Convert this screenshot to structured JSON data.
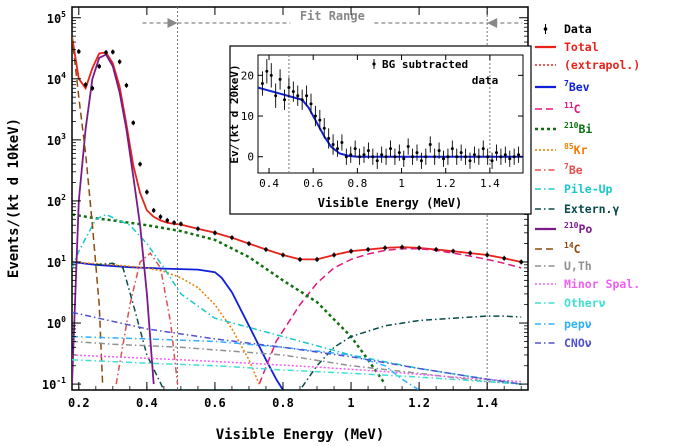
{
  "chart_data": [
    {
      "type": "line",
      "xlabel": "Visible Energy (MeV)",
      "ylabel": "Events/(kt d 10keV)",
      "xlim": [
        0.18,
        1.52
      ],
      "ylim": [
        0.08,
        150000
      ],
      "yscale": "log",
      "x_ticks": [
        0.2,
        0.4,
        0.6,
        0.8,
        1.0,
        1.2,
        1.4
      ],
      "x_tick_labels": [
        "0.2",
        "0.4",
        "0.6",
        "0.8",
        "1",
        "1.2",
        "1.4"
      ],
      "y_ticks": [
        0.1,
        1,
        10,
        100,
        1000,
        10000,
        100000
      ],
      "y_tick_labels": [
        [
          "10",
          "-1"
        ],
        [
          "10",
          "0"
        ],
        [
          "10",
          "1"
        ],
        [
          "10",
          "2"
        ],
        [
          "10",
          "3"
        ],
        [
          "10",
          "4"
        ],
        [
          "10",
          "5"
        ]
      ],
      "fit_range": {
        "label": "Fit Range",
        "x": [
          0.49,
          1.4
        ]
      },
      "legend_position": "outside-right",
      "series": [
        {
          "name": "Data",
          "color": "#000000",
          "style": "points",
          "x": [
            0.2,
            0.22,
            0.24,
            0.26,
            0.28,
            0.3,
            0.32,
            0.34,
            0.36,
            0.38,
            0.4,
            0.42,
            0.44,
            0.46,
            0.48,
            0.5,
            0.55,
            0.6,
            0.65,
            0.7,
            0.75,
            0.8,
            0.85,
            0.9,
            0.95,
            1.0,
            1.05,
            1.1,
            1.15,
            1.2,
            1.25,
            1.3,
            1.35,
            1.4,
            1.45,
            1.5
          ],
          "y": [
            28000,
            8000,
            7000,
            16000,
            27000,
            27500,
            19000,
            7800,
            1900,
            400,
            140,
            70,
            55,
            48,
            44,
            42,
            35,
            30,
            25,
            20,
            16,
            13,
            11,
            11,
            13,
            15,
            16,
            17,
            17.5,
            17,
            16,
            15,
            14,
            13,
            11.5,
            10
          ]
        },
        {
          "name": "Total",
          "color": "#e8231a",
          "style": "solid",
          "x": [
            0.18,
            0.2,
            0.22,
            0.24,
            0.26,
            0.28,
            0.3,
            0.32,
            0.34,
            0.36,
            0.38,
            0.4,
            0.42,
            0.44,
            0.46,
            0.48,
            0.5,
            0.55,
            0.6,
            0.65,
            0.7,
            0.75,
            0.8,
            0.85,
            0.9,
            0.95,
            1.0,
            1.05,
            1.1,
            1.15,
            1.2,
            1.25,
            1.3,
            1.35,
            1.4,
            1.45,
            1.5
          ],
          "y": [
            50000,
            10000,
            7000,
            15000,
            26000,
            27000,
            18000,
            7500,
            1800,
            380,
            135,
            70,
            55,
            48,
            44,
            42,
            41,
            35,
            30,
            25,
            20,
            16,
            13,
            11,
            11,
            13,
            15,
            16,
            17,
            17.5,
            17,
            16,
            15,
            14,
            13,
            11.5,
            10
          ]
        },
        {
          "name": "(extrapol.)",
          "color": "#e8231a",
          "style": "dotted",
          "x": [
            1.4,
            1.45,
            1.5
          ],
          "y": [
            13,
            11.5,
            10
          ]
        },
        {
          "name": "7Bev",
          "color": "#1020d8",
          "style": "solid",
          "x": [
            0.18,
            0.25,
            0.35,
            0.45,
            0.55,
            0.6,
            0.62,
            0.65,
            0.7,
            0.75,
            0.78,
            0.8
          ],
          "y": [
            10,
            9,
            8.2,
            7.8,
            7.5,
            6.8,
            5.5,
            3.2,
            0.9,
            0.25,
            0.12,
            0.08
          ]
        },
        {
          "name": "11C",
          "color": "#e0197c",
          "style": "dashed",
          "x": [
            0.73,
            0.78,
            0.85,
            0.9,
            0.95,
            1.0,
            1.05,
            1.1,
            1.15,
            1.2,
            1.25,
            1.3,
            1.35,
            1.4,
            1.45,
            1.5
          ],
          "y": [
            0.1,
            0.5,
            2,
            4.5,
            8,
            11,
            13.5,
            15.5,
            16.5,
            16.5,
            15.5,
            14,
            12.5,
            11,
            9.5,
            8
          ]
        },
        {
          "name": "210Bi",
          "color": "#107010",
          "style": "dotted-bold",
          "x": [
            0.18,
            0.25,
            0.3,
            0.4,
            0.5,
            0.6,
            0.7,
            0.8,
            0.9,
            1.0,
            1.05,
            1.1
          ],
          "y": [
            60,
            52,
            48,
            40,
            32,
            23,
            12,
            5,
            2.2,
            0.6,
            0.25,
            0.1
          ]
        },
        {
          "name": "85Kr",
          "color": "#f07d00",
          "style": "dotted",
          "x": [
            0.18,
            0.3,
            0.4,
            0.45,
            0.5,
            0.55,
            0.6,
            0.65,
            0.7,
            0.73
          ],
          "y": [
            10,
            9,
            8,
            7,
            5.5,
            3.8,
            2,
            0.8,
            0.25,
            0.1
          ]
        },
        {
          "name": "7Be",
          "color": "#e05050",
          "style": "dash-dot",
          "x": [
            0.31,
            0.35,
            0.38,
            0.41,
            0.44,
            0.47,
            0.49
          ],
          "y": [
            0.1,
            2,
            10,
            14,
            8,
            1,
            0.1
          ]
        },
        {
          "name": "Pile-Up",
          "color": "#18c8c8",
          "style": "dash-dot",
          "x": [
            0.18,
            0.2,
            0.25,
            0.28,
            0.35,
            0.4,
            0.45,
            0.5,
            0.6,
            0.8,
            1.0,
            1.2,
            1.4,
            1.5
          ],
          "y": [
            8,
            15,
            50,
            60,
            40,
            20,
            8,
            3,
            1.2,
            0.6,
            0.3,
            0.18,
            0.12,
            0.1
          ]
        },
        {
          "name": "Extern. y",
          "color": "#0a4a4a",
          "style": "dash-dot",
          "x": [
            0.25,
            0.3,
            0.33,
            0.36,
            0.4,
            0.45,
            0.85,
            0.9,
            0.95,
            1.0,
            1.1,
            1.2,
            1.3,
            1.4,
            1.45,
            1.5
          ],
          "y": [
            9,
            9.5,
            8,
            2,
            0.3,
            0.08,
            0.08,
            0.2,
            0.4,
            0.6,
            0.9,
            1.1,
            1.2,
            1.3,
            1.3,
            1.25
          ]
        },
        {
          "name": "210Po",
          "color": "#7a1a8a",
          "style": "solid",
          "x": [
            0.18,
            0.2,
            0.22,
            0.24,
            0.26,
            0.28,
            0.3,
            0.32,
            0.34,
            0.36,
            0.38,
            0.4,
            0.42
          ],
          "y": [
            0.1,
            100,
            1500,
            10000,
            22000,
            25000,
            16000,
            6000,
            1500,
            250,
            40,
            3,
            0.1
          ]
        },
        {
          "name": "14C",
          "color": "#8a4a10",
          "style": "dashed",
          "x": [
            0.18,
            0.2,
            0.22,
            0.24,
            0.26,
            0.27
          ],
          "y": [
            50000,
            5000,
            600,
            40,
            2,
            0.1
          ]
        },
        {
          "name": "U,Th",
          "color": "#909090",
          "style": "dash-dot",
          "x": [
            0.18,
            0.3,
            0.5,
            0.8,
            1.0,
            1.2,
            1.4,
            1.5
          ],
          "y": [
            0.5,
            0.45,
            0.4,
            0.3,
            0.2,
            0.15,
            0.11,
            0.1
          ]
        },
        {
          "name": "Minor Spal.",
          "color": "#f060f0",
          "style": "dotted",
          "x": [
            0.18,
            0.3,
            0.5,
            0.7,
            0.9,
            1.1,
            1.3,
            1.5
          ],
          "y": [
            0.3,
            0.28,
            0.25,
            0.22,
            0.19,
            0.16,
            0.13,
            0.11
          ]
        },
        {
          "name": "Otherv",
          "color": "#40e0d0",
          "style": "dash-dot",
          "x": [
            0.18,
            0.4,
            0.6,
            0.8,
            1.0,
            1.2,
            1.4,
            1.5
          ],
          "y": [
            0.25,
            0.22,
            0.2,
            0.17,
            0.15,
            0.13,
            0.11,
            0.1
          ]
        },
        {
          "name": "pepv",
          "color": "#30b0ff",
          "style": "dash-dot",
          "x": [
            0.18,
            0.4,
            0.6,
            0.8,
            1.0,
            1.1,
            1.15,
            1.2
          ],
          "y": [
            0.6,
            0.55,
            0.5,
            0.4,
            0.3,
            0.2,
            0.12,
            0.08
          ]
        },
        {
          "name": "CNOv",
          "color": "#5050d0",
          "style": "dash-dot",
          "x": [
            0.18,
            0.4,
            0.6,
            0.8,
            1.0,
            1.2,
            1.4,
            1.5
          ],
          "y": [
            1.5,
            0.8,
            0.55,
            0.4,
            0.28,
            0.18,
            0.12,
            0.1
          ]
        }
      ],
      "legend": [
        {
          "label": "Data",
          "color": "#000000",
          "kind": "point"
        },
        {
          "label": "Total",
          "color": "#e8231a",
          "kind": "solid"
        },
        {
          "label": "(extrapol.)",
          "color": "#e8231a",
          "kind": "dotted"
        },
        {
          "label": "Bev",
          "sup": "7",
          "color": "#1020d8",
          "kind": "solid"
        },
        {
          "label": "C",
          "sup": "11",
          "color": "#e0197c",
          "kind": "dashed"
        },
        {
          "label": "Bi",
          "sup": "210",
          "color": "#107010",
          "kind": "dotted-bold"
        },
        {
          "label": "Kr",
          "sup": "85",
          "color": "#f07d00",
          "kind": "dotted"
        },
        {
          "label": "Be",
          "sup": "7",
          "color": "#e05050",
          "kind": "dash-dot"
        },
        {
          "label": "Pile-Up",
          "color": "#18c8c8",
          "kind": "dash-dot"
        },
        {
          "label": "Extern.γ",
          "color": "#0a4a4a",
          "kind": "dash-dot"
        },
        {
          "label": "Po",
          "sup": "210",
          "color": "#7a1a8a",
          "kind": "solid"
        },
        {
          "label": "C",
          "sup": "14",
          "color": "#8a4a10",
          "kind": "dashed"
        },
        {
          "label": "U,Th",
          "color": "#909090",
          "kind": "dash-dot"
        },
        {
          "label": "Minor Spal.",
          "color": "#f060f0",
          "kind": "dotted"
        },
        {
          "label": "Otherν",
          "color": "#40e0d0",
          "kind": "dash-dot"
        },
        {
          "label": "pepν",
          "color": "#30b0ff",
          "kind": "dash-dot"
        },
        {
          "label": "CNOν",
          "color": "#5050d0",
          "kind": "dash-dot"
        }
      ]
    },
    {
      "type": "scatter",
      "xlabel": "Visible Energy (MeV)",
      "ylabel": "Ev/(kt d 20keV)",
      "xlim": [
        0.35,
        1.55
      ],
      "ylim": [
        -4,
        25
      ],
      "x_ticks": [
        0.4,
        0.6,
        0.8,
        1.0,
        1.2,
        1.4
      ],
      "x_tick_labels": [
        "0.4",
        "0.6",
        "0.8",
        "1",
        "1.2",
        "1.4"
      ],
      "y_ticks": [
        0,
        10,
        20
      ],
      "y_tick_labels": [
        "0",
        "10",
        "20"
      ],
      "vlines": [
        0.49,
        1.4
      ],
      "legend": [
        "BG subtracted",
        "data"
      ],
      "series": [
        {
          "name": "BG subtracted data",
          "color": "#000000",
          "x": [
            0.37,
            0.39,
            0.41,
            0.43,
            0.45,
            0.47,
            0.49,
            0.51,
            0.53,
            0.55,
            0.57,
            0.59,
            0.61,
            0.63,
            0.65,
            0.67,
            0.69,
            0.71,
            0.73,
            0.75,
            0.77,
            0.79,
            0.81,
            0.83,
            0.85,
            0.87,
            0.89,
            0.91,
            0.93,
            0.95,
            0.97,
            0.99,
            1.01,
            1.03,
            1.05,
            1.07,
            1.09,
            1.11,
            1.13,
            1.15,
            1.17,
            1.19,
            1.21,
            1.23,
            1.25,
            1.27,
            1.29,
            1.31,
            1.33,
            1.35,
            1.37,
            1.39,
            1.41,
            1.43,
            1.45,
            1.47,
            1.49,
            1.51,
            1.53
          ],
          "y": [
            18,
            21,
            20,
            15,
            19,
            14,
            17,
            16,
            15,
            14,
            15,
            13,
            10,
            9,
            7,
            4.5,
            3,
            2,
            3.5,
            0,
            0.5,
            2,
            0,
            0.5,
            1.5,
            0,
            -1,
            0.5,
            0,
            2,
            0,
            1,
            -0.5,
            2.5,
            0,
            1,
            -1,
            0,
            3,
            0,
            1.5,
            -0.5,
            0,
            2,
            0,
            1,
            0,
            -1,
            0.5,
            0,
            2,
            0,
            -1,
            1,
            0,
            0.5,
            -0.5,
            0,
            0.5
          ],
          "err": [
            3,
            3,
            3,
            3,
            2.5,
            2.5,
            2.5,
            2.5,
            2.5,
            2.5,
            2.5,
            2.5,
            2.5,
            2.5,
            2.5,
            2.5,
            2.5,
            2,
            2,
            2,
            2,
            2,
            2,
            2,
            2,
            2,
            2,
            2,
            2,
            2,
            2,
            2,
            2,
            2,
            2,
            2,
            2,
            2,
            2,
            2,
            2,
            2,
            2,
            2,
            2,
            2,
            2,
            2,
            2,
            2,
            2,
            2,
            2,
            2,
            2,
            2,
            2,
            2,
            2
          ]
        },
        {
          "name": "fit",
          "color": "#1020d8",
          "style": "solid",
          "x": [
            0.35,
            0.45,
            0.55,
            0.58,
            0.62,
            0.65,
            0.68,
            0.72,
            0.76,
            0.8,
            0.9,
            1.1,
            1.3,
            1.55
          ],
          "y": [
            17,
            15.5,
            14,
            12,
            8,
            5,
            2.5,
            0.8,
            0.2,
            0,
            0,
            0,
            0,
            0
          ]
        }
      ]
    }
  ]
}
